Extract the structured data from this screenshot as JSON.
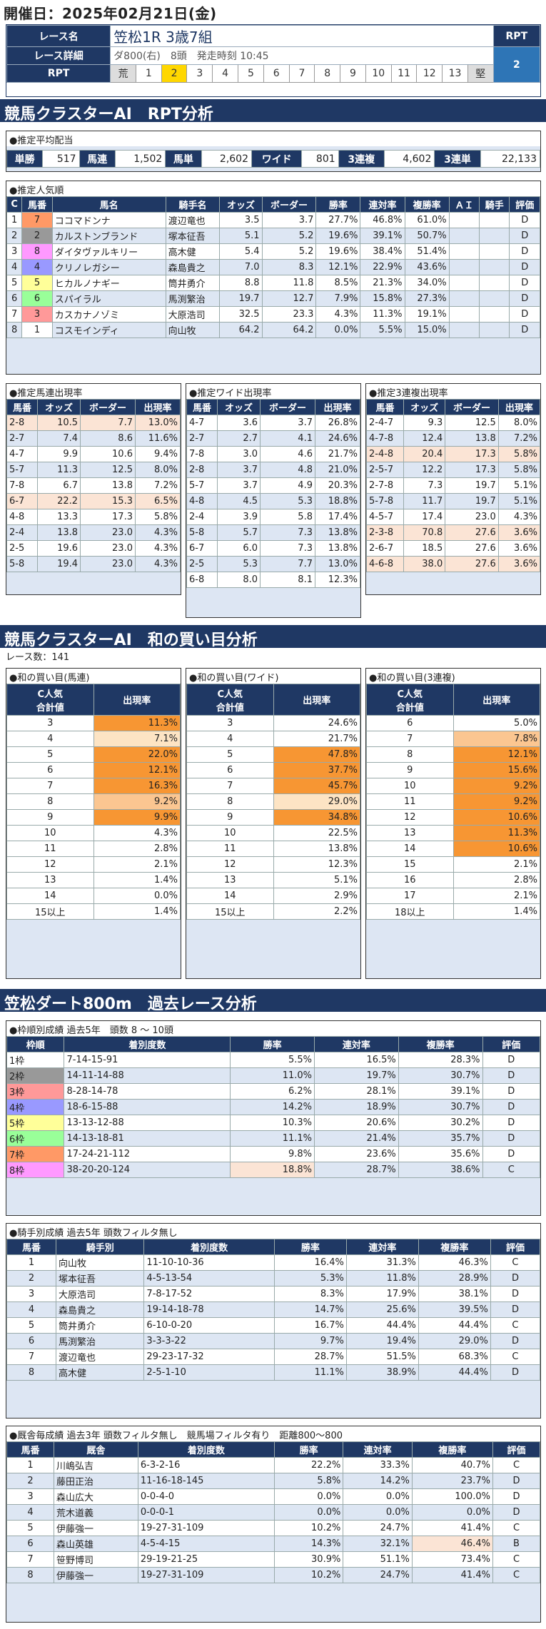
{
  "header": {
    "date": "開催日：2025年02月21日(金)",
    "race_name_label": "レース名",
    "race_name": "笠松1R 3歳7組",
    "detail_label": "レース詳細",
    "detail": "ダ800(右)　8頭　発走時刻 10:45",
    "rpt_label": "RPT",
    "rpt_header": "RPT",
    "rpt_value": "2",
    "scale": [
      "荒",
      "1",
      "2",
      "3",
      "4",
      "5",
      "6",
      "7",
      "8",
      "9",
      "10",
      "11",
      "12",
      "13",
      "堅"
    ]
  },
  "section1_title": "競馬クラスターAI　RPT分析",
  "payout": {
    "title": "●推定平均配当",
    "items": [
      [
        "単勝",
        "517"
      ],
      [
        "馬連",
        "1,502"
      ],
      [
        "馬単",
        "2,602"
      ],
      [
        "ワイド",
        "801"
      ],
      [
        "3連複",
        "4,602"
      ],
      [
        "3連単",
        "22,133"
      ]
    ]
  },
  "popularity": {
    "title": "●推定人気順",
    "headers": [
      "C",
      "馬番",
      "馬名",
      "騎手名",
      "オッズ",
      "ボーダー",
      "勝率",
      "連対率",
      "複勝率",
      "ＡＩ",
      "騎手",
      "評価"
    ],
    "rows": [
      [
        "1",
        "7",
        "ココマドンナ",
        "渡辺竜也",
        "3.5",
        "3.7",
        "27.7%",
        "46.8%",
        "61.0%",
        "",
        "",
        "D"
      ],
      [
        "2",
        "2",
        "カルストンブランド",
        "塚本征吾",
        "5.1",
        "5.2",
        "19.6%",
        "39.1%",
        "50.7%",
        "",
        "",
        "D"
      ],
      [
        "3",
        "8",
        "ダイタヴァルキリー",
        "高木健",
        "5.4",
        "5.2",
        "19.6%",
        "38.4%",
        "51.4%",
        "",
        "",
        "D"
      ],
      [
        "4",
        "4",
        "クリノレガシー",
        "森島貴之",
        "7.0",
        "8.3",
        "12.1%",
        "22.9%",
        "43.6%",
        "",
        "",
        "D"
      ],
      [
        "5",
        "5",
        "ヒカルノナギー",
        "筒井勇介",
        "8.8",
        "11.8",
        "8.5%",
        "21.3%",
        "34.0%",
        "",
        "",
        "D"
      ],
      [
        "6",
        "6",
        "スパイラル",
        "馬渕繁治",
        "19.7",
        "12.7",
        "7.9%",
        "15.8%",
        "27.3%",
        "",
        "",
        "D"
      ],
      [
        "7",
        "3",
        "カスカナノゾミ",
        "大原浩司",
        "32.5",
        "23.3",
        "4.3%",
        "11.3%",
        "19.1%",
        "",
        "",
        "D"
      ],
      [
        "8",
        "1",
        "コスモインディ",
        "向山牧",
        "64.2",
        "64.2",
        "0.0%",
        "5.5%",
        "15.0%",
        "",
        "",
        "D"
      ]
    ]
  },
  "umaren": {
    "title": "●推定馬連出現率",
    "headers": [
      "馬番",
      "オッズ",
      "ボーダー",
      "出現率"
    ],
    "rows": [
      [
        "2-8",
        "10.5",
        "7.7",
        "13.0%"
      ],
      [
        "2-7",
        "7.4",
        "8.6",
        "11.6%"
      ],
      [
        "4-7",
        "9.9",
        "10.6",
        "9.4%"
      ],
      [
        "5-7",
        "11.3",
        "12.5",
        "8.0%"
      ],
      [
        "7-8",
        "6.7",
        "13.8",
        "7.2%"
      ],
      [
        "6-7",
        "22.2",
        "15.3",
        "6.5%"
      ],
      [
        "4-8",
        "13.3",
        "17.3",
        "5.8%"
      ],
      [
        "2-4",
        "13.8",
        "23.0",
        "4.3%"
      ],
      [
        "2-5",
        "19.6",
        "23.0",
        "4.3%"
      ],
      [
        "5-8",
        "19.4",
        "23.0",
        "4.3%"
      ]
    ]
  },
  "wide": {
    "title": "●推定ワイド出現率",
    "headers": [
      "馬番",
      "オッズ",
      "ボーダー",
      "出現率"
    ],
    "rows": [
      [
        "4-7",
        "3.6",
        "3.7",
        "26.8%"
      ],
      [
        "2-7",
        "2.7",
        "4.1",
        "24.6%"
      ],
      [
        "7-8",
        "3.0",
        "4.6",
        "21.7%"
      ],
      [
        "2-8",
        "3.7",
        "4.8",
        "21.0%"
      ],
      [
        "5-7",
        "3.7",
        "4.9",
        "20.3%"
      ],
      [
        "4-8",
        "4.5",
        "5.3",
        "18.8%"
      ],
      [
        "2-4",
        "3.9",
        "5.8",
        "17.4%"
      ],
      [
        "5-8",
        "5.7",
        "7.3",
        "13.8%"
      ],
      [
        "6-7",
        "6.0",
        "7.3",
        "13.8%"
      ],
      [
        "2-5",
        "5.3",
        "7.7",
        "13.0%"
      ],
      [
        "6-8",
        "8.0",
        "8.1",
        "12.3%"
      ]
    ]
  },
  "sanfuku": {
    "title": "●推定3連複出現率",
    "headers": [
      "馬番",
      "オッズ",
      "ボーダー",
      "出現率"
    ],
    "rows": [
      [
        "2-4-7",
        "9.3",
        "12.5",
        "8.0%"
      ],
      [
        "4-7-8",
        "12.4",
        "13.8",
        "7.2%"
      ],
      [
        "2-4-8",
        "20.4",
        "17.3",
        "5.8%"
      ],
      [
        "2-5-7",
        "12.2",
        "17.3",
        "5.8%"
      ],
      [
        "2-7-8",
        "7.3",
        "19.7",
        "5.1%"
      ],
      [
        "5-7-8",
        "11.7",
        "19.7",
        "5.1%"
      ],
      [
        "4-5-7",
        "17.4",
        "23.0",
        "4.3%"
      ],
      [
        "2-3-8",
        "70.8",
        "27.6",
        "3.6%"
      ],
      [
        "2-6-7",
        "18.5",
        "27.6",
        "3.6%"
      ],
      [
        "4-6-8",
        "38.0",
        "27.6",
        "3.6%"
      ]
    ]
  },
  "section2_title": "競馬クラスターAI　和の買い目分析",
  "race_count": "レース数：141",
  "sum_umaren": {
    "title": "●和の買い目(馬連)",
    "h1": "C人気\n合計値",
    "h2": "出現率",
    "rows": [
      [
        "3",
        "11.3%"
      ],
      [
        "4",
        "7.1%"
      ],
      [
        "5",
        "22.0%"
      ],
      [
        "6",
        "12.1%"
      ],
      [
        "7",
        "16.3%"
      ],
      [
        "8",
        "9.2%"
      ],
      [
        "9",
        "9.9%"
      ],
      [
        "10",
        "4.3%"
      ],
      [
        "11",
        "2.8%"
      ],
      [
        "12",
        "2.1%"
      ],
      [
        "13",
        "1.4%"
      ],
      [
        "14",
        "0.0%"
      ],
      [
        "15以上",
        "1.4%"
      ]
    ]
  },
  "sum_wide": {
    "title": "●和の買い目(ワイド)",
    "h1": "C人気\n合計値",
    "h2": "出現率",
    "rows": [
      [
        "3",
        "24.6%"
      ],
      [
        "4",
        "21.7%"
      ],
      [
        "5",
        "47.8%"
      ],
      [
        "6",
        "37.7%"
      ],
      [
        "7",
        "45.7%"
      ],
      [
        "8",
        "29.0%"
      ],
      [
        "9",
        "34.8%"
      ],
      [
        "10",
        "22.5%"
      ],
      [
        "11",
        "13.8%"
      ],
      [
        "12",
        "12.3%"
      ],
      [
        "13",
        "5.1%"
      ],
      [
        "14",
        "2.9%"
      ],
      [
        "15以上",
        "2.2%"
      ]
    ]
  },
  "sum_sanfuku": {
    "title": "●和の買い目(3連複)",
    "h1": "C人気\n合計値",
    "h2": "出現率",
    "rows": [
      [
        "6",
        "5.0%"
      ],
      [
        "7",
        "7.8%"
      ],
      [
        "8",
        "12.1%"
      ],
      [
        "9",
        "15.6%"
      ],
      [
        "10",
        "9.2%"
      ],
      [
        "11",
        "9.2%"
      ],
      [
        "12",
        "10.6%"
      ],
      [
        "13",
        "11.3%"
      ],
      [
        "14",
        "10.6%"
      ],
      [
        "15",
        "2.1%"
      ],
      [
        "16",
        "2.8%"
      ],
      [
        "17",
        "2.1%"
      ],
      [
        "18以上",
        "1.4%"
      ]
    ]
  },
  "section3_title": "笠松ダート800m　過去レース分析",
  "waku": {
    "title": "●枠順別成績 過去5年　頭数 8 ～ 10頭",
    "headers": [
      "枠順",
      "着別度数",
      "勝率",
      "連対率",
      "複勝率",
      "評価"
    ],
    "rows": [
      [
        "1枠",
        "7-14-15-91",
        "5.5%",
        "16.5%",
        "28.3%",
        "D"
      ],
      [
        "2枠",
        "14-11-14-88",
        "11.0%",
        "19.7%",
        "30.7%",
        "D"
      ],
      [
        "3枠",
        "8-28-14-78",
        "6.2%",
        "28.1%",
        "39.1%",
        "D"
      ],
      [
        "4枠",
        "18-6-15-88",
        "14.2%",
        "18.9%",
        "30.7%",
        "D"
      ],
      [
        "5枠",
        "13-13-12-88",
        "10.3%",
        "20.6%",
        "30.2%",
        "D"
      ],
      [
        "6枠",
        "14-13-18-81",
        "11.1%",
        "21.4%",
        "35.7%",
        "D"
      ],
      [
        "7枠",
        "17-24-21-112",
        "9.8%",
        "23.6%",
        "35.6%",
        "D"
      ],
      [
        "8枠",
        "38-20-20-124",
        "18.8%",
        "28.7%",
        "38.6%",
        "C"
      ]
    ]
  },
  "jockey": {
    "title": "●騎手別成績 過去5年 頭数フィルタ無し",
    "headers": [
      "馬番",
      "騎手別",
      "着別度数",
      "勝率",
      "連対率",
      "複勝率",
      "評価"
    ],
    "rows": [
      [
        "1",
        "向山牧",
        "11-10-10-36",
        "16.4%",
        "31.3%",
        "46.3%",
        "C"
      ],
      [
        "2",
        "塚本征吾",
        "4-5-13-54",
        "5.3%",
        "11.8%",
        "28.9%",
        "D"
      ],
      [
        "3",
        "大原浩司",
        "7-8-17-52",
        "8.3%",
        "17.9%",
        "38.1%",
        "D"
      ],
      [
        "4",
        "森島貴之",
        "19-14-18-78",
        "14.7%",
        "25.6%",
        "39.5%",
        "D"
      ],
      [
        "5",
        "筒井勇介",
        "6-10-0-20",
        "16.7%",
        "44.4%",
        "44.4%",
        "C"
      ],
      [
        "6",
        "馬渕繁治",
        "3-3-3-22",
        "9.7%",
        "19.4%",
        "29.0%",
        "D"
      ],
      [
        "7",
        "渡辺竜也",
        "29-23-17-32",
        "28.7%",
        "51.5%",
        "68.3%",
        "C"
      ],
      [
        "8",
        "高木健",
        "2-5-1-10",
        "11.1%",
        "38.9%",
        "44.4%",
        "D"
      ]
    ]
  },
  "stable": {
    "title": "●厩舎毎成績 過去3年 頭数フィルタ無し　競馬場フィルタ有り　距離800～800",
    "headers": [
      "馬番",
      "厩舎",
      "着別度数",
      "勝率",
      "連対率",
      "複勝率",
      "評価"
    ],
    "rows": [
      [
        "1",
        "川嶋弘吉",
        "6-3-2-16",
        "22.2%",
        "33.3%",
        "40.7%",
        "C"
      ],
      [
        "2",
        "藤田正治",
        "11-16-18-145",
        "5.8%",
        "14.2%",
        "23.7%",
        "D"
      ],
      [
        "3",
        "森山広大",
        "0-0-4-0",
        "0.0%",
        "0.0%",
        "100.0%",
        "D"
      ],
      [
        "4",
        "荒木道義",
        "0-0-0-1",
        "0.0%",
        "0.0%",
        "0.0%",
        "D"
      ],
      [
        "5",
        "伊藤強一",
        "19-27-31-109",
        "10.2%",
        "24.7%",
        "41.4%",
        "C"
      ],
      [
        "6",
        "森山英雄",
        "4-5-4-15",
        "14.3%",
        "32.1%",
        "46.4%",
        "B"
      ],
      [
        "7",
        "笹野博司",
        "29-19-21-25",
        "30.9%",
        "51.1%",
        "73.4%",
        "C"
      ],
      [
        "8",
        "伊藤強一",
        "19-27-31-109",
        "10.2%",
        "24.7%",
        "41.4%",
        "C"
      ]
    ]
  }
}
